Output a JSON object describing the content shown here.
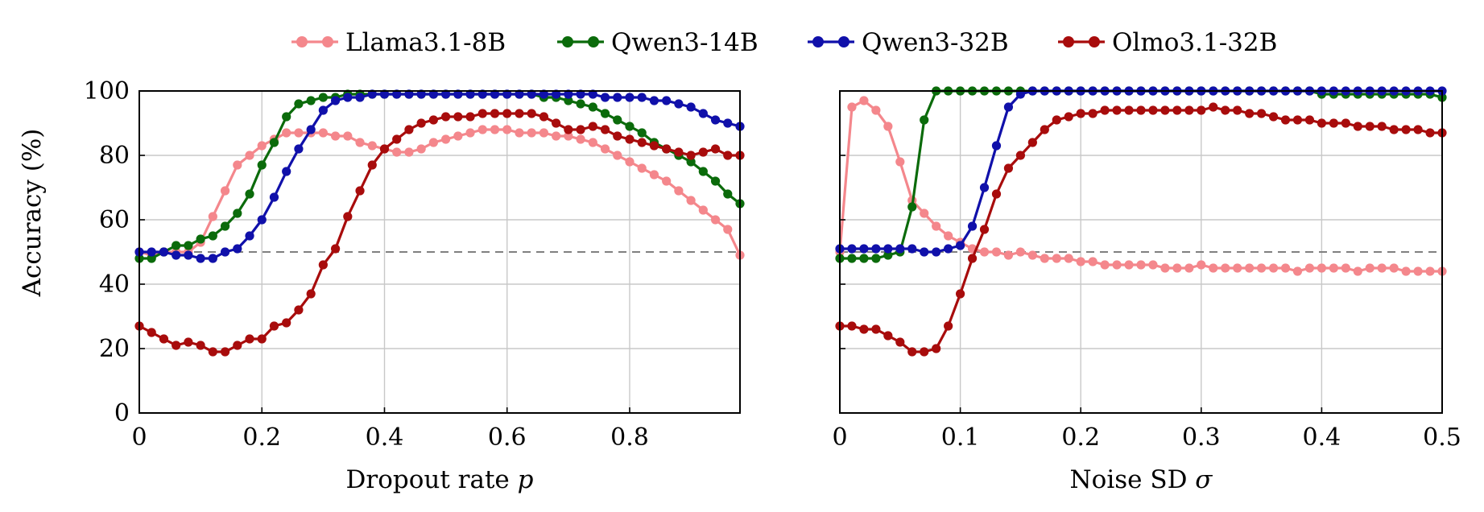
{
  "legend": {
    "placement": "top-center",
    "entries": [
      {
        "name": "Llama3.1-8B",
        "color": "#f4878c"
      },
      {
        "name": "Qwen3-14B",
        "color": "#0b6b0b"
      },
      {
        "name": "Qwen3-32B",
        "color": "#1010aa"
      },
      {
        "name": "Olmo3.1-32B",
        "color": "#a80c0c"
      }
    ]
  },
  "chart_data": [
    {
      "type": "line",
      "xlabel": "Dropout rate ",
      "xlabel_var": "p",
      "ylabel": "Accuracy (%)",
      "xlim": [
        0,
        0.98
      ],
      "ylim": [
        0,
        100
      ],
      "xticks": [
        0,
        0.2,
        0.4,
        0.6,
        0.8
      ],
      "xtick_labels": [
        "0",
        "0.2",
        "0.4",
        "0.6",
        "0.8"
      ],
      "yticks": [
        0,
        20,
        40,
        60,
        80,
        100
      ],
      "ytick_labels": [
        "0",
        "20",
        "40",
        "60",
        "80",
        "100"
      ],
      "grid": true,
      "reference_line": 50,
      "series": [
        {
          "name": "Llama3.1-8B",
          "color": "#f4878c",
          "x": [
            0,
            0.02,
            0.04,
            0.06,
            0.08,
            0.1,
            0.12,
            0.14,
            0.16,
            0.18,
            0.2,
            0.22,
            0.24,
            0.26,
            0.28,
            0.3,
            0.32,
            0.34,
            0.36,
            0.38,
            0.4,
            0.42,
            0.44,
            0.46,
            0.48,
            0.5,
            0.52,
            0.54,
            0.56,
            0.58,
            0.6,
            0.62,
            0.64,
            0.66,
            0.68,
            0.7,
            0.72,
            0.74,
            0.76,
            0.78,
            0.8,
            0.82,
            0.84,
            0.86,
            0.88,
            0.9,
            0.92,
            0.94,
            0.96,
            0.98
          ],
          "y": [
            50,
            49,
            50,
            50,
            50,
            53,
            61,
            69,
            77,
            80,
            83,
            85,
            87,
            87,
            87,
            87,
            86,
            86,
            84,
            83,
            82,
            81,
            81,
            82,
            84,
            85,
            86,
            87,
            88,
            88,
            88,
            87,
            87,
            87,
            86,
            86,
            85,
            84,
            82,
            80,
            78,
            76,
            74,
            72,
            69,
            66,
            63,
            60,
            57,
            49
          ]
        },
        {
          "name": "Qwen3-14B",
          "color": "#0b6b0b",
          "x": [
            0,
            0.02,
            0.04,
            0.06,
            0.08,
            0.1,
            0.12,
            0.14,
            0.16,
            0.18,
            0.2,
            0.22,
            0.24,
            0.26,
            0.28,
            0.3,
            0.32,
            0.34,
            0.36,
            0.38,
            0.4,
            0.42,
            0.44,
            0.46,
            0.48,
            0.5,
            0.52,
            0.54,
            0.56,
            0.58,
            0.6,
            0.62,
            0.64,
            0.66,
            0.68,
            0.7,
            0.72,
            0.74,
            0.76,
            0.78,
            0.8,
            0.82,
            0.84,
            0.86,
            0.88,
            0.9,
            0.92,
            0.94,
            0.96,
            0.98
          ],
          "y": [
            48,
            48,
            50,
            52,
            52,
            54,
            55,
            58,
            62,
            68,
            77,
            84,
            92,
            96,
            97,
            98,
            98,
            99,
            99,
            99,
            99,
            99,
            99,
            99,
            99,
            99,
            99,
            99,
            99,
            99,
            99,
            99,
            99,
            98,
            98,
            97,
            96,
            95,
            93,
            91,
            89,
            87,
            84,
            82,
            80,
            78,
            75,
            72,
            68,
            65
          ]
        },
        {
          "name": "Qwen3-32B",
          "color": "#1010aa",
          "x": [
            0,
            0.02,
            0.04,
            0.06,
            0.08,
            0.1,
            0.12,
            0.14,
            0.16,
            0.18,
            0.2,
            0.22,
            0.24,
            0.26,
            0.28,
            0.3,
            0.32,
            0.34,
            0.36,
            0.38,
            0.4,
            0.42,
            0.44,
            0.46,
            0.48,
            0.5,
            0.52,
            0.54,
            0.56,
            0.58,
            0.6,
            0.62,
            0.64,
            0.66,
            0.68,
            0.7,
            0.72,
            0.74,
            0.76,
            0.78,
            0.8,
            0.82,
            0.84,
            0.86,
            0.88,
            0.9,
            0.92,
            0.94,
            0.96,
            0.98
          ],
          "y": [
            50,
            50,
            50,
            49,
            49,
            48,
            48,
            50,
            51,
            55,
            60,
            67,
            75,
            82,
            88,
            94,
            97,
            98,
            98,
            99,
            99,
            99,
            99,
            99,
            99,
            99,
            99,
            99,
            99,
            99,
            99,
            99,
            99,
            99,
            99,
            99,
            99,
            99,
            98,
            98,
            98,
            98,
            97,
            97,
            96,
            95,
            93,
            91,
            90,
            89
          ]
        },
        {
          "name": "Olmo3.1-32B",
          "color": "#a80c0c",
          "x": [
            0,
            0.02,
            0.04,
            0.06,
            0.08,
            0.1,
            0.12,
            0.14,
            0.16,
            0.18,
            0.2,
            0.22,
            0.24,
            0.26,
            0.28,
            0.3,
            0.32,
            0.34,
            0.36,
            0.38,
            0.4,
            0.42,
            0.44,
            0.46,
            0.48,
            0.5,
            0.52,
            0.54,
            0.56,
            0.58,
            0.6,
            0.62,
            0.64,
            0.66,
            0.68,
            0.7,
            0.72,
            0.74,
            0.76,
            0.78,
            0.8,
            0.82,
            0.84,
            0.86,
            0.88,
            0.9,
            0.92,
            0.94,
            0.96,
            0.98
          ],
          "y": [
            27,
            25,
            23,
            21,
            22,
            21,
            19,
            19,
            21,
            23,
            23,
            27,
            28,
            32,
            37,
            46,
            51,
            61,
            69,
            77,
            82,
            85,
            88,
            90,
            91,
            92,
            92,
            92,
            93,
            93,
            93,
            93,
            93,
            92,
            90,
            88,
            88,
            89,
            88,
            86,
            85,
            84,
            83,
            82,
            81,
            80,
            81,
            82,
            80,
            80
          ]
        }
      ]
    },
    {
      "type": "line",
      "xlabel": "Noise SD ",
      "xlabel_var": "σ",
      "ylabel": "",
      "xlim": [
        0,
        0.5
      ],
      "ylim": [
        0,
        100
      ],
      "xticks": [
        0,
        0.1,
        0.2,
        0.3,
        0.4,
        0.5
      ],
      "xtick_labels": [
        "0",
        "0.1",
        "0.2",
        "0.3",
        "0.4",
        "0.5"
      ],
      "yticks": [
        0,
        20,
        40,
        60,
        80,
        100
      ],
      "ytick_labels": [],
      "grid": true,
      "reference_line": 50,
      "series": [
        {
          "name": "Llama3.1-8B",
          "color": "#f4878c",
          "x": [
            0,
            0.01,
            0.02,
            0.03,
            0.04,
            0.05,
            0.06,
            0.07,
            0.08,
            0.09,
            0.1,
            0.11,
            0.12,
            0.13,
            0.14,
            0.15,
            0.16,
            0.17,
            0.18,
            0.19,
            0.2,
            0.21,
            0.22,
            0.23,
            0.24,
            0.25,
            0.26,
            0.27,
            0.28,
            0.29,
            0.3,
            0.31,
            0.32,
            0.33,
            0.34,
            0.35,
            0.36,
            0.37,
            0.38,
            0.39,
            0.4,
            0.41,
            0.42,
            0.43,
            0.44,
            0.45,
            0.46,
            0.47,
            0.48,
            0.49,
            0.5
          ],
          "y": [
            50,
            95,
            97,
            94,
            89,
            78,
            66,
            62,
            58,
            55,
            53,
            51,
            50,
            50,
            49,
            50,
            49,
            48,
            48,
            48,
            47,
            47,
            46,
            46,
            46,
            46,
            46,
            45,
            45,
            45,
            46,
            45,
            45,
            45,
            45,
            45,
            45,
            45,
            44,
            45,
            45,
            45,
            45,
            44,
            45,
            45,
            45,
            44,
            44,
            44,
            44
          ]
        },
        {
          "name": "Qwen3-14B",
          "color": "#0b6b0b",
          "x": [
            0,
            0.01,
            0.02,
            0.03,
            0.04,
            0.05,
            0.06,
            0.07,
            0.08,
            0.09,
            0.1,
            0.11,
            0.12,
            0.13,
            0.14,
            0.15,
            0.16,
            0.17,
            0.18,
            0.19,
            0.2,
            0.21,
            0.22,
            0.23,
            0.24,
            0.25,
            0.26,
            0.27,
            0.28,
            0.29,
            0.3,
            0.31,
            0.32,
            0.33,
            0.34,
            0.35,
            0.36,
            0.37,
            0.38,
            0.39,
            0.4,
            0.41,
            0.42,
            0.43,
            0.44,
            0.45,
            0.46,
            0.47,
            0.48,
            0.49,
            0.5
          ],
          "y": [
            48,
            48,
            48,
            48,
            49,
            50,
            64,
            91,
            100,
            100,
            100,
            100,
            100,
            100,
            100,
            100,
            100,
            100,
            100,
            100,
            100,
            100,
            100,
            100,
            100,
            100,
            100,
            100,
            100,
            100,
            100,
            100,
            100,
            100,
            100,
            100,
            100,
            100,
            100,
            100,
            99,
            99,
            99,
            99,
            99,
            99,
            99,
            99,
            99,
            99,
            98
          ]
        },
        {
          "name": "Qwen3-32B",
          "color": "#1010aa",
          "x": [
            0,
            0.01,
            0.02,
            0.03,
            0.04,
            0.05,
            0.06,
            0.07,
            0.08,
            0.09,
            0.1,
            0.11,
            0.12,
            0.13,
            0.14,
            0.15,
            0.16,
            0.17,
            0.18,
            0.19,
            0.2,
            0.21,
            0.22,
            0.23,
            0.24,
            0.25,
            0.26,
            0.27,
            0.28,
            0.29,
            0.3,
            0.31,
            0.32,
            0.33,
            0.34,
            0.35,
            0.36,
            0.37,
            0.38,
            0.39,
            0.4,
            0.41,
            0.42,
            0.43,
            0.44,
            0.45,
            0.46,
            0.47,
            0.48,
            0.49,
            0.5
          ],
          "y": [
            51,
            51,
            51,
            51,
            51,
            51,
            51,
            50,
            50,
            51,
            52,
            58,
            70,
            83,
            95,
            99,
            100,
            100,
            100,
            100,
            100,
            100,
            100,
            100,
            100,
            100,
            100,
            100,
            100,
            100,
            100,
            100,
            100,
            100,
            100,
            100,
            100,
            100,
            100,
            100,
            100,
            100,
            100,
            100,
            100,
            100,
            100,
            100,
            100,
            100,
            100
          ]
        },
        {
          "name": "Olmo3.1-32B",
          "color": "#a80c0c",
          "x": [
            0,
            0.01,
            0.02,
            0.03,
            0.04,
            0.05,
            0.06,
            0.07,
            0.08,
            0.09,
            0.1,
            0.11,
            0.12,
            0.13,
            0.14,
            0.15,
            0.16,
            0.17,
            0.18,
            0.19,
            0.2,
            0.21,
            0.22,
            0.23,
            0.24,
            0.25,
            0.26,
            0.27,
            0.28,
            0.29,
            0.3,
            0.31,
            0.32,
            0.33,
            0.34,
            0.35,
            0.36,
            0.37,
            0.38,
            0.39,
            0.4,
            0.41,
            0.42,
            0.43,
            0.44,
            0.45,
            0.46,
            0.47,
            0.48,
            0.49,
            0.5
          ],
          "y": [
            27,
            27,
            26,
            26,
            24,
            22,
            19,
            19,
            20,
            27,
            37,
            48,
            57,
            68,
            76,
            80,
            84,
            88,
            91,
            92,
            93,
            93,
            94,
            94,
            94,
            94,
            94,
            94,
            94,
            94,
            94,
            95,
            94,
            94,
            93,
            93,
            92,
            91,
            91,
            91,
            90,
            90,
            90,
            89,
            89,
            89,
            88,
            88,
            88,
            87,
            87
          ]
        }
      ]
    }
  ]
}
